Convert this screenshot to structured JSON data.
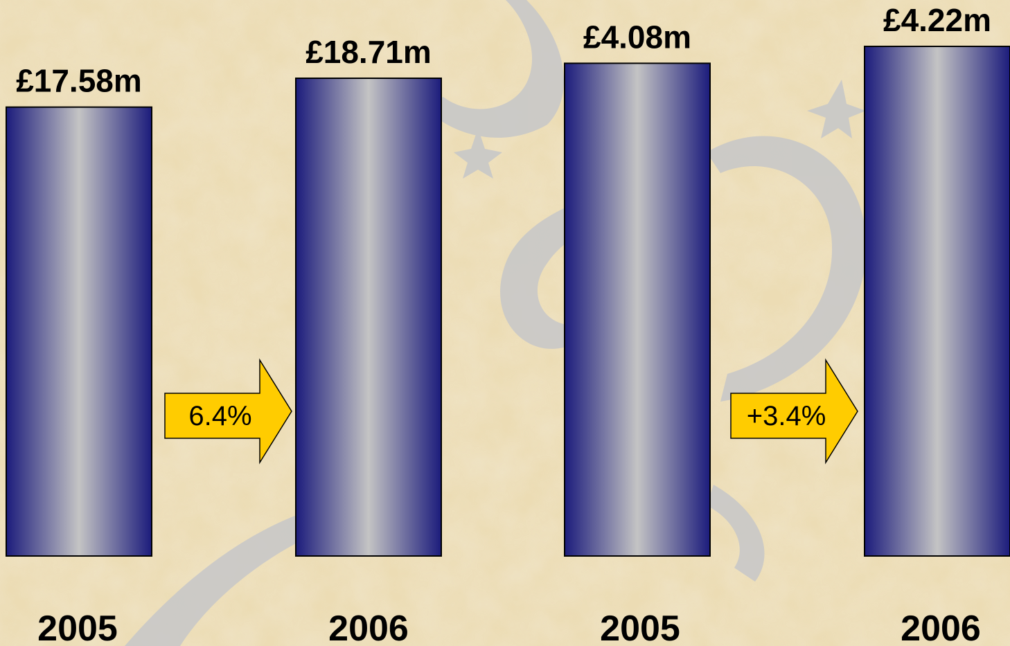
{
  "chart_data": [
    {
      "type": "bar",
      "categories": [
        "2005",
        "2006"
      ],
      "values": [
        17.58,
        18.71
      ],
      "value_labels": [
        "£17.58m",
        "£18.71m"
      ],
      "annotation": "6.4%",
      "color": "#1c1c7c"
    },
    {
      "type": "bar",
      "categories": [
        "2005",
        "2006"
      ],
      "values": [
        4.08,
        4.22
      ],
      "value_labels": [
        "£4.08m",
        "£4.22m"
      ],
      "annotation": "+3.4%",
      "color": "#1c1c7c"
    }
  ]
}
